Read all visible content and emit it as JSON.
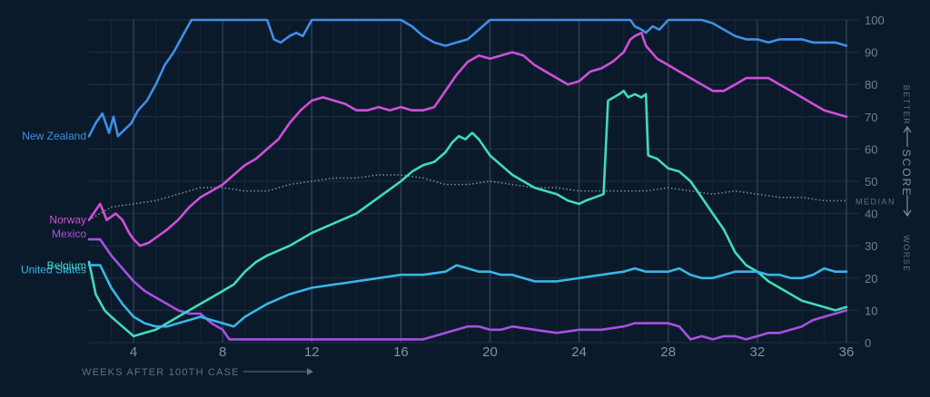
{
  "chart_data": {
    "type": "line",
    "xlabel": "WEEKS AFTER 100TH CASE",
    "ylabel": "SCORE",
    "ylabel_better": "BETTER",
    "ylabel_worse": "WORSE",
    "xlim": [
      2,
      36
    ],
    "ylim": [
      0,
      100
    ],
    "x_ticks": [
      4,
      8,
      12,
      16,
      20,
      24,
      28,
      32,
      36
    ],
    "y_ticks": [
      0,
      10,
      20,
      30,
      40,
      50,
      60,
      70,
      80,
      90,
      100
    ],
    "grid": true,
    "median_label": "MEDIAN",
    "colors": {
      "background": "#0b1a2b",
      "grid": "#1e3047",
      "median": "#7b8799",
      "axis_text": "#8190a6"
    },
    "series": [
      {
        "name": "New Zealand",
        "color": "#3f8fe6",
        "x": [
          2,
          2.3,
          2.6,
          2.9,
          3.1,
          3.3,
          3.6,
          3.9,
          4.2,
          4.6,
          5,
          5.4,
          5.8,
          6.2,
          6.6,
          7,
          7.5,
          8,
          8.5,
          9,
          9.5,
          10,
          10.3,
          10.6,
          11,
          11.3,
          11.6,
          12,
          12.5,
          13,
          13.5,
          14,
          15,
          15.5,
          16,
          16.5,
          17,
          17.5,
          18,
          18.5,
          19,
          20,
          21,
          22,
          23,
          24,
          25,
          26,
          26.3,
          26.5,
          26.8,
          27,
          27.3,
          27.6,
          28,
          28.5,
          29,
          29.5,
          30,
          30.5,
          31,
          31.5,
          32,
          32.5,
          33,
          33.5,
          34,
          34.5,
          35,
          35.5,
          36
        ],
        "values": [
          64,
          68,
          71,
          65,
          70,
          64,
          66,
          68,
          72,
          75,
          80,
          86,
          90,
          95,
          100,
          100,
          100,
          100,
          100,
          100,
          100,
          100,
          94,
          93,
          95,
          96,
          95,
          100,
          100,
          100,
          100,
          100,
          100,
          100,
          100,
          98,
          95,
          93,
          92,
          93,
          94,
          100,
          100,
          100,
          100,
          100,
          100,
          100,
          100,
          98,
          97,
          96,
          98,
          97,
          100,
          100,
          100,
          100,
          99,
          97,
          95,
          94,
          94,
          93,
          94,
          94,
          94,
          93,
          93,
          93,
          92
        ]
      },
      {
        "name": "Norway",
        "color": "#d04fd8",
        "x": [
          2,
          2.2,
          2.5,
          2.8,
          3.2,
          3.5,
          3.8,
          4,
          4.3,
          4.7,
          5.1,
          5.5,
          6,
          6.5,
          7,
          7.5,
          8,
          8.5,
          9,
          9.5,
          10,
          10.5,
          11,
          11.5,
          12,
          12.5,
          13,
          13.5,
          14,
          14.5,
          15,
          15.5,
          16,
          16.5,
          17,
          17.5,
          18,
          18.5,
          19,
          19.5,
          20,
          20.5,
          21,
          21.5,
          22,
          22.5,
          23,
          23.5,
          24,
          24.5,
          25,
          25.5,
          26,
          26.3,
          26.5,
          26.8,
          27,
          27.5,
          28,
          28.5,
          29,
          29.5,
          30,
          30.5,
          31,
          31.5,
          32,
          32.5,
          33,
          33.5,
          34,
          34.5,
          35,
          35.5,
          36
        ],
        "values": [
          38,
          40,
          43,
          38,
          40,
          38,
          34,
          32,
          30,
          31,
          33,
          35,
          38,
          42,
          45,
          47,
          49,
          52,
          55,
          57,
          60,
          63,
          68,
          72,
          75,
          76,
          75,
          74,
          72,
          72,
          73,
          72,
          73,
          72,
          72,
          73,
          78,
          83,
          87,
          89,
          88,
          89,
          90,
          89,
          86,
          84,
          82,
          80,
          81,
          84,
          85,
          87,
          90,
          94,
          95,
          96,
          92,
          88,
          86,
          84,
          82,
          80,
          78,
          78,
          80,
          82,
          82,
          82,
          80,
          78,
          76,
          74,
          72,
          71,
          70
        ]
      },
      {
        "name": "Mexico",
        "color": "#a651e0",
        "x": [
          2,
          2.5,
          3,
          3.5,
          4,
          4.5,
          5,
          5.5,
          6,
          6.5,
          7,
          7.5,
          8,
          8.3,
          9,
          10,
          11,
          12,
          13,
          14,
          15,
          16,
          17,
          17.5,
          18,
          18.5,
          19,
          19.5,
          20,
          20.5,
          21,
          22,
          23,
          24,
          25,
          26,
          26.5,
          27,
          27.5,
          28,
          28.5,
          29,
          29.5,
          30,
          30.5,
          31,
          31.5,
          32,
          32.5,
          33,
          33.5,
          34,
          34.5,
          35,
          35.5,
          36
        ],
        "values": [
          32,
          32,
          27,
          23,
          19,
          16,
          14,
          12,
          10,
          9,
          9,
          6,
          4,
          1,
          1,
          1,
          1,
          1,
          1,
          1,
          1,
          1,
          1,
          2,
          3,
          4,
          5,
          5,
          4,
          4,
          5,
          4,
          3,
          4,
          4,
          5,
          6,
          6,
          6,
          6,
          5,
          1,
          2,
          1,
          2,
          2,
          1,
          2,
          3,
          3,
          4,
          5,
          7,
          8,
          9,
          10
        ]
      },
      {
        "name": "Belgium",
        "color": "#3fdcbc",
        "x": [
          2,
          2.3,
          2.7,
          3,
          3.5,
          4,
          4.5,
          5,
          5.5,
          6,
          6.5,
          7,
          7.5,
          8,
          8.5,
          9,
          9.5,
          10,
          11,
          12,
          13,
          14,
          15,
          16,
          16.5,
          17,
          17.5,
          18,
          18.3,
          18.6,
          18.9,
          19.2,
          19.5,
          20,
          20.5,
          21,
          21.5,
          22,
          22.5,
          23,
          23.5,
          24,
          24.3,
          24.7,
          25.1,
          25.3,
          25.8,
          26,
          26.2,
          26.5,
          26.8,
          27,
          27.1,
          27.5,
          28,
          28.5,
          29,
          29.5,
          30,
          30.5,
          31,
          31.5,
          32,
          32.5,
          33,
          33.5,
          34,
          34.5,
          35,
          35.5,
          36
        ],
        "values": [
          25,
          15,
          10,
          8,
          5,
          2,
          3,
          4,
          6,
          8,
          10,
          12,
          14,
          16,
          18,
          22,
          25,
          27,
          30,
          34,
          37,
          40,
          45,
          50,
          53,
          55,
          56,
          59,
          62,
          64,
          63,
          65,
          63,
          58,
          55,
          52,
          50,
          48,
          47,
          46,
          44,
          43,
          44,
          45,
          46,
          75,
          77,
          78,
          76,
          77,
          76,
          77,
          58,
          57,
          54,
          53,
          50,
          45,
          40,
          35,
          28,
          24,
          22,
          19,
          17,
          15,
          13,
          12,
          11,
          10,
          11
        ]
      },
      {
        "name": "United States",
        "color": "#39b6e8",
        "x": [
          2,
          2.5,
          3,
          3.5,
          4,
          4.5,
          5,
          5.5,
          6,
          6.5,
          7,
          7.5,
          8,
          8.5,
          9,
          9.5,
          10,
          11,
          12,
          13,
          14,
          15,
          16,
          17,
          18,
          18.5,
          19,
          19.5,
          20,
          20.5,
          21,
          22,
          23,
          24,
          25,
          26,
          26.5,
          27,
          27.5,
          28,
          28.5,
          29,
          29.5,
          30,
          30.5,
          31,
          31.5,
          32,
          32.5,
          33,
          33.5,
          34,
          34.5,
          35,
          35.5,
          36
        ],
        "values": [
          24,
          24,
          17,
          12,
          8,
          6,
          5,
          5,
          6,
          7,
          8,
          7,
          6,
          5,
          8,
          10,
          12,
          15,
          17,
          18,
          19,
          20,
          21,
          21,
          22,
          24,
          23,
          22,
          22,
          21,
          21,
          19,
          19,
          20,
          21,
          22,
          23,
          22,
          22,
          22,
          23,
          21,
          20,
          20,
          21,
          22,
          22,
          22,
          21,
          21,
          20,
          20,
          21,
          23,
          22,
          22
        ]
      }
    ],
    "median": {
      "x": [
        2,
        3,
        4,
        5,
        6,
        7,
        8,
        9,
        10,
        11,
        12,
        13,
        14,
        15,
        16,
        17,
        18,
        19,
        20,
        21,
        22,
        23,
        24,
        25,
        26,
        27,
        28,
        29,
        30,
        31,
        32,
        33,
        34,
        35,
        36
      ],
      "values": [
        38,
        42,
        43,
        44,
        46,
        48,
        48,
        47,
        47,
        49,
        50,
        51,
        51,
        52,
        52,
        51,
        49,
        49,
        50,
        49,
        48,
        48,
        47,
        47,
        47,
        47,
        48,
        47,
        46,
        47,
        46,
        45,
        45,
        44,
        44
      ]
    }
  }
}
